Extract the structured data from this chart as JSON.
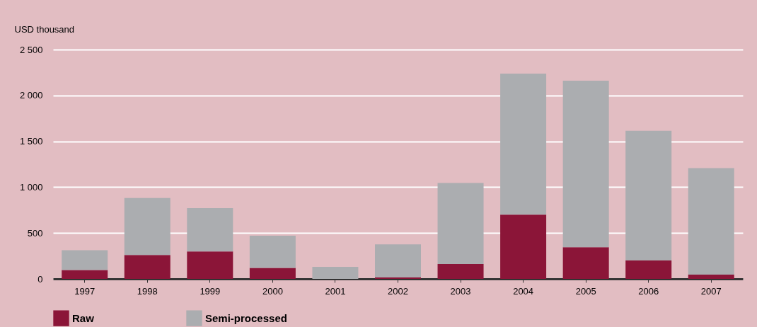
{
  "chart_data": {
    "type": "bar",
    "stacked": true,
    "ylabel": "USD thousand",
    "categories": [
      "1997",
      "1998",
      "1999",
      "2000",
      "2001",
      "2002",
      "2003",
      "2004",
      "2005",
      "2006",
      "2007"
    ],
    "series": [
      {
        "name": "Raw",
        "color": "#8b1538",
        "values": [
          97,
          260,
          299,
          120,
          0,
          15,
          162,
          700,
          346,
          200,
          46
        ]
      },
      {
        "name": "Semi-processed",
        "color": "#abadb0",
        "values": [
          215,
          621,
          473,
          350,
          131,
          362,
          884,
          1538,
          1815,
          1415,
          1161
        ]
      }
    ],
    "ylim": [
      0,
      2500
    ],
    "yticks": [
      0,
      500,
      {
        "value": 1000,
        "label": "1 000"
      },
      {
        "value": 1500,
        "label": "1 500"
      },
      {
        "value": 2000,
        "label": "2 000"
      },
      {
        "value": 2500,
        "label": "2 500"
      }
    ],
    "grid": "y",
    "legend": "bottom"
  }
}
